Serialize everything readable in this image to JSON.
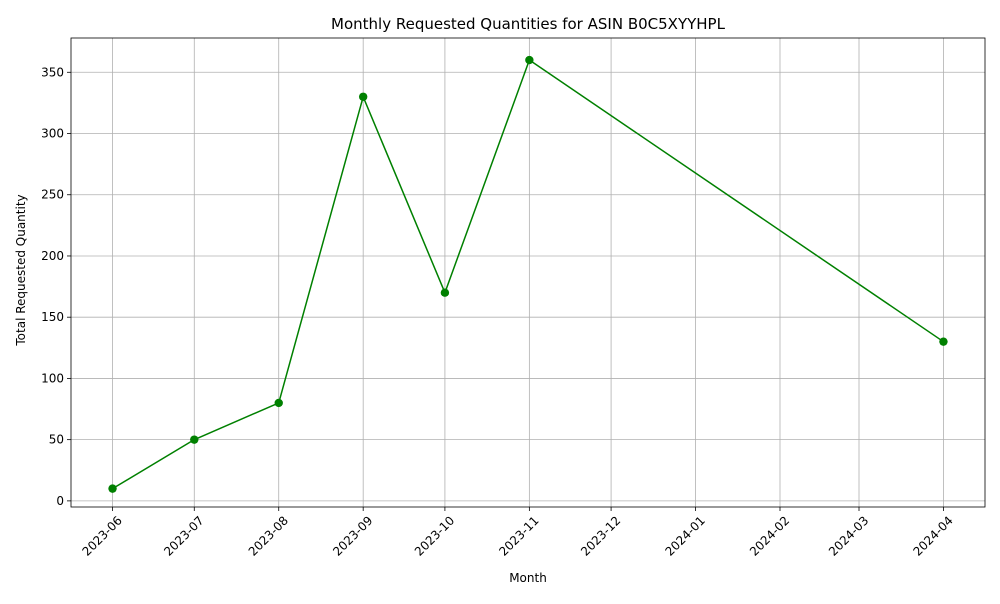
{
  "colors": {
    "line": "#008000",
    "grid": "#b0b0b0",
    "axis": "#000000",
    "background": "#ffffff"
  },
  "chart_data": {
    "type": "line",
    "title": "Monthly Requested Quantities for ASIN B0C5XYYHPL",
    "xlabel": "Month",
    "ylabel": "Total Requested Quantity",
    "x_ticks": [
      "2023-06",
      "2023-07",
      "2023-08",
      "2023-09",
      "2023-10",
      "2023-11",
      "2023-12",
      "2024-01",
      "2024-02",
      "2024-03",
      "2024-04"
    ],
    "y_ticks": [
      0,
      50,
      100,
      150,
      200,
      250,
      300,
      350
    ],
    "ylim": [
      -5,
      378
    ],
    "grid": true,
    "marker": "circle",
    "series": [
      {
        "x": [
          "2023-06",
          "2023-07",
          "2023-08",
          "2023-09",
          "2023-10",
          "2023-11",
          "2024-04"
        ],
        "values": [
          10,
          50,
          80,
          330,
          170,
          360,
          130
        ]
      }
    ]
  }
}
